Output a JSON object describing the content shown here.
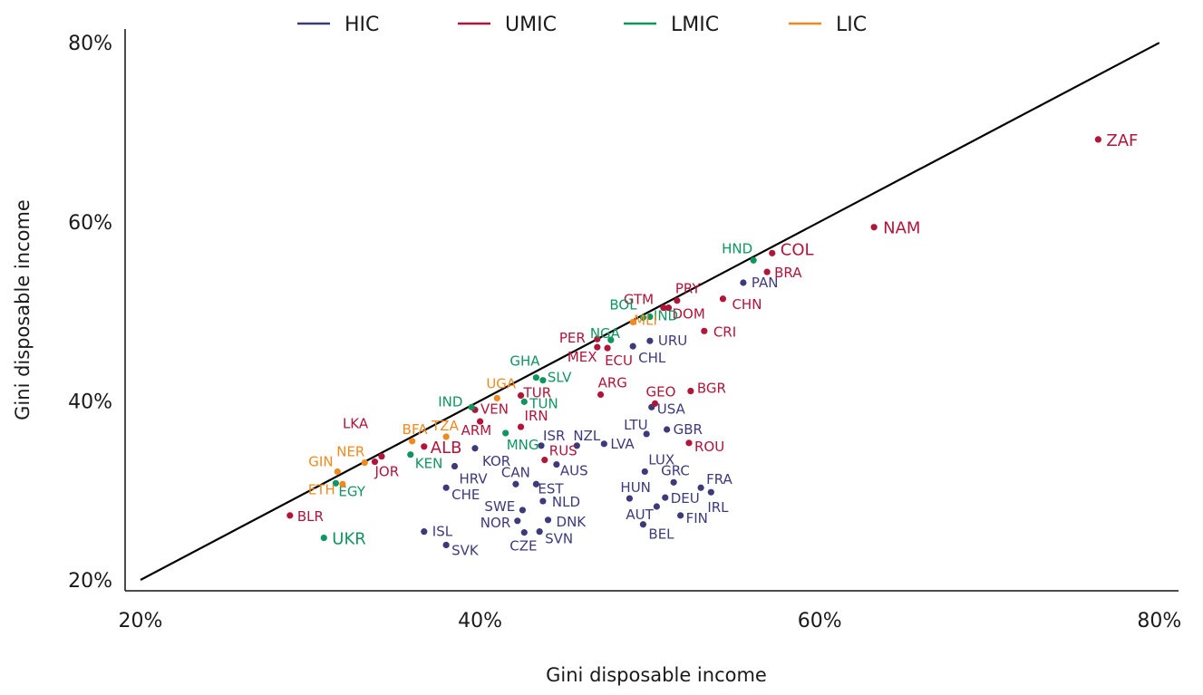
{
  "chart_data": {
    "type": "scatter",
    "xlabel": "Gini disposable income",
    "ylabel": "Gini disposable income",
    "xlim": [
      20,
      80
    ],
    "ylim": [
      20,
      80
    ],
    "x_ticks": [
      "20%",
      "40%",
      "60%",
      "80%"
    ],
    "y_ticks": [
      "20%",
      "40%",
      "60%",
      "80%"
    ],
    "grid": false,
    "legend_position": "top",
    "reference_line": {
      "from": [
        20,
        20
      ],
      "to": [
        80,
        80
      ]
    },
    "colors": {
      "HIC": "#3d3a7a",
      "UMIC": "#b0153a",
      "LMIC": "#0f9660",
      "LIC": "#f08a1e"
    },
    "series": [
      {
        "name": "HIC",
        "points": [
          {
            "label": "PAN",
            "x": 55.5,
            "y": 53.2
          },
          {
            "label": "URU",
            "x": 50.0,
            "y": 46.7
          },
          {
            "label": "CHL",
            "x": 49.0,
            "y": 46.1
          },
          {
            "label": "USA",
            "x": 50.1,
            "y": 39.3
          },
          {
            "label": "GBR",
            "x": 51.0,
            "y": 36.8
          },
          {
            "label": "LTU",
            "x": 49.8,
            "y": 36.3
          },
          {
            "label": "LVA",
            "x": 47.3,
            "y": 35.2
          },
          {
            "label": "ISR",
            "x": 43.6,
            "y": 35.0
          },
          {
            "label": "NZL",
            "x": 45.7,
            "y": 35.0
          },
          {
            "label": "KOR",
            "x": 39.7,
            "y": 34.7
          },
          {
            "label": "HRV",
            "x": 38.5,
            "y": 32.7
          },
          {
            "label": "CAN",
            "x": 42.1,
            "y": 30.7
          },
          {
            "label": "EST",
            "x": 43.3,
            "y": 30.7
          },
          {
            "label": "AUS",
            "x": 44.5,
            "y": 32.9
          },
          {
            "label": "LUX",
            "x": 49.7,
            "y": 32.1
          },
          {
            "label": "GRC",
            "x": 51.4,
            "y": 30.9
          },
          {
            "label": "FRA",
            "x": 53.0,
            "y": 30.3
          },
          {
            "label": "IRL",
            "x": 53.6,
            "y": 29.8
          },
          {
            "label": "CHE",
            "x": 38.0,
            "y": 30.3
          },
          {
            "label": "HUN",
            "x": 48.8,
            "y": 29.1
          },
          {
            "label": "DEU",
            "x": 50.9,
            "y": 29.2
          },
          {
            "label": "NLD",
            "x": 43.7,
            "y": 28.8
          },
          {
            "label": "AUT",
            "x": 50.4,
            "y": 28.2
          },
          {
            "label": "SWE",
            "x": 42.5,
            "y": 27.8
          },
          {
            "label": "FIN",
            "x": 51.8,
            "y": 27.2
          },
          {
            "label": "NOR",
            "x": 42.2,
            "y": 26.6
          },
          {
            "label": "DNK",
            "x": 44.0,
            "y": 26.7
          },
          {
            "label": "BEL",
            "x": 49.6,
            "y": 26.2
          },
          {
            "label": "ISL",
            "x": 36.7,
            "y": 25.4
          },
          {
            "label": "CZE",
            "x": 42.6,
            "y": 25.3
          },
          {
            "label": "SVN",
            "x": 43.5,
            "y": 25.4
          },
          {
            "label": "SVK",
            "x": 38.0,
            "y": 23.9
          }
        ]
      },
      {
        "name": "UMIC",
        "points": [
          {
            "label": "ZAF",
            "x": 76.4,
            "y": 69.2
          },
          {
            "label": "NAM",
            "x": 63.2,
            "y": 59.4
          },
          {
            "label": "COL",
            "x": 57.2,
            "y": 56.5
          },
          {
            "label": "BRA",
            "x": 56.9,
            "y": 54.4
          },
          {
            "label": "CHN",
            "x": 54.3,
            "y": 51.4
          },
          {
            "label": "PRY",
            "x": 51.6,
            "y": 51.2
          },
          {
            "label": "GTM",
            "x": 50.8,
            "y": 50.4
          },
          {
            "label": "DOM",
            "x": 51.1,
            "y": 50.4
          },
          {
            "label": "CRI",
            "x": 53.2,
            "y": 47.8
          },
          {
            "label": "PER",
            "x": 46.9,
            "y": 46.9
          },
          {
            "label": "MEX",
            "x": 46.9,
            "y": 46.0
          },
          {
            "label": "ECU",
            "x": 47.5,
            "y": 45.9
          },
          {
            "label": "ARG",
            "x": 47.1,
            "y": 40.7
          },
          {
            "label": "BGR",
            "x": 52.4,
            "y": 41.1
          },
          {
            "label": "GEO",
            "x": 50.3,
            "y": 39.7
          },
          {
            "label": "TUR",
            "x": 42.4,
            "y": 40.6
          },
          {
            "label": "VEN",
            "x": 39.7,
            "y": 39.0
          },
          {
            "label": "IRN",
            "x": 42.4,
            "y": 37.1
          },
          {
            "label": "ARM",
            "x": 40.0,
            "y": 37.7
          },
          {
            "label": "ALB",
            "x": 36.7,
            "y": 34.9
          },
          {
            "label": "ROU",
            "x": 52.3,
            "y": 35.3
          },
          {
            "label": "RUS",
            "x": 43.8,
            "y": 33.4
          },
          {
            "label": "JOR",
            "x": 33.8,
            "y": 33.2
          },
          {
            "label": "LKA",
            "x": 34.2,
            "y": 33.8
          },
          {
            "label": "BLR",
            "x": 28.8,
            "y": 27.2
          }
        ]
      },
      {
        "name": "LMIC",
        "points": [
          {
            "label": "HND",
            "x": 56.1,
            "y": 55.7
          },
          {
            "label": "BOL",
            "x": 49.6,
            "y": 49.3
          },
          {
            "label": "IND",
            "x": 50.0,
            "y": 49.4
          },
          {
            "label": "NGA",
            "x": 47.7,
            "y": 46.8
          },
          {
            "label": "GHA",
            "x": 43.3,
            "y": 42.6
          },
          {
            "label": "SLV",
            "x": 43.7,
            "y": 42.3
          },
          {
            "label": "IND",
            "x": 39.5,
            "y": 39.3
          },
          {
            "label": "TUN",
            "x": 42.6,
            "y": 39.9
          },
          {
            "label": "MNG",
            "x": 41.5,
            "y": 36.4
          },
          {
            "label": "KEN",
            "x": 35.9,
            "y": 34.0
          },
          {
            "label": "EGY",
            "x": 31.5,
            "y": 30.8
          },
          {
            "label": "UKR",
            "x": 30.8,
            "y": 24.7
          }
        ]
      },
      {
        "name": "LIC",
        "points": [
          {
            "label": "MLI",
            "x": 49.0,
            "y": 48.8
          },
          {
            "label": "UGA",
            "x": 41.0,
            "y": 40.3
          },
          {
            "label": "TZA",
            "x": 38.0,
            "y": 36.0
          },
          {
            "label": "BFA",
            "x": 36.0,
            "y": 35.5
          },
          {
            "label": "NER",
            "x": 33.2,
            "y": 33.1
          },
          {
            "label": "GIN",
            "x": 31.6,
            "y": 32.1
          },
          {
            "label": "ETH",
            "x": 31.9,
            "y": 30.7
          }
        ]
      }
    ]
  }
}
